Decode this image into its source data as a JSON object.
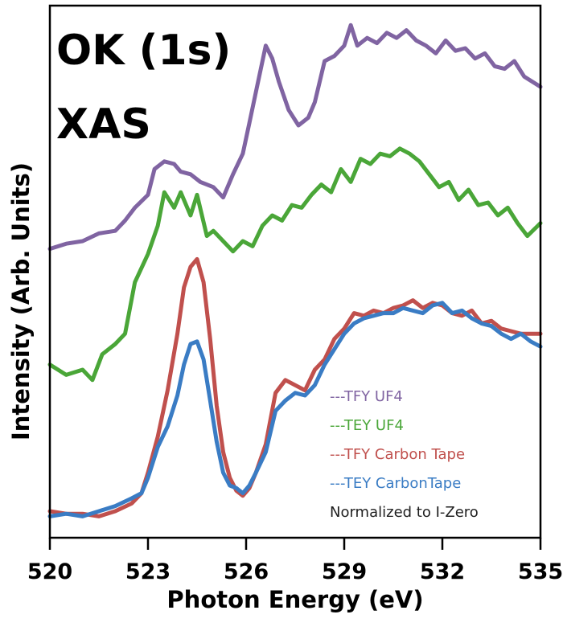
{
  "chart_data": {
    "type": "line",
    "title_lines": [
      "OK (1s)",
      "XAS"
    ],
    "xlabel": "Photon Energy (eV)",
    "ylabel": "Intensity (Arb. Units)",
    "xlim": [
      520,
      535
    ],
    "ylim": [
      0,
      1
    ],
    "grid": false,
    "legend_position": "bottom-right",
    "x_ticks": [
      {
        "value": 520,
        "label": "520"
      },
      {
        "value": 523,
        "label": "523"
      },
      {
        "value": 526,
        "label": "526"
      },
      {
        "value": 529,
        "label": "529"
      },
      {
        "value": 532,
        "label": "532"
      },
      {
        "value": 535,
        "label": "535"
      }
    ],
    "legend": [
      {
        "text": "---TFY  UF4",
        "color": "#8064a2"
      },
      {
        "text": "---TEY  UF4",
        "color": "#4aa638"
      },
      {
        "text": "---TFY  Carbon Tape",
        "color": "#c0504d"
      },
      {
        "text": "---TEY  CarbonTape",
        "color": "#3a7cc4"
      },
      {
        "text": "Normalized to I-Zero",
        "color": "#1f1f1f"
      }
    ],
    "series": [
      {
        "name": "TFY UF4",
        "color": "#8064a2",
        "x": [
          520.0,
          520.5,
          521.0,
          521.5,
          522.0,
          522.3,
          522.6,
          523.0,
          523.2,
          523.5,
          523.8,
          524.0,
          524.3,
          524.6,
          525.0,
          525.3,
          525.6,
          525.9,
          526.1,
          526.3,
          526.6,
          526.8,
          527.0,
          527.3,
          527.6,
          527.9,
          528.1,
          528.4,
          528.7,
          529.0,
          529.2,
          529.4,
          529.7,
          530.0,
          530.3,
          530.6,
          530.9,
          531.2,
          531.5,
          531.8,
          532.1,
          532.4,
          532.7,
          533.0,
          533.3,
          533.6,
          533.9,
          534.2,
          534.5,
          535.0
        ],
        "y": [
          0.535,
          0.545,
          0.55,
          0.565,
          0.57,
          0.59,
          0.615,
          0.64,
          0.69,
          0.705,
          0.7,
          0.685,
          0.68,
          0.665,
          0.655,
          0.635,
          0.68,
          0.72,
          0.78,
          0.84,
          0.93,
          0.905,
          0.86,
          0.805,
          0.775,
          0.79,
          0.82,
          0.9,
          0.91,
          0.93,
          0.97,
          0.93,
          0.945,
          0.935,
          0.955,
          0.945,
          0.96,
          0.94,
          0.93,
          0.915,
          0.94,
          0.92,
          0.925,
          0.905,
          0.915,
          0.89,
          0.885,
          0.9,
          0.87,
          0.85
        ]
      },
      {
        "name": "TEY UF4",
        "color": "#4aa638",
        "x": [
          520.0,
          520.5,
          521.0,
          521.3,
          521.6,
          522.0,
          522.3,
          522.6,
          523.0,
          523.3,
          523.5,
          523.8,
          524.0,
          524.3,
          524.5,
          524.8,
          525.0,
          525.3,
          525.6,
          525.9,
          526.2,
          526.5,
          526.8,
          527.1,
          527.4,
          527.7,
          528.0,
          528.3,
          528.6,
          528.9,
          529.2,
          529.5,
          529.8,
          530.1,
          530.4,
          530.7,
          531.0,
          531.3,
          531.6,
          531.9,
          532.2,
          532.5,
          532.8,
          533.1,
          533.4,
          533.7,
          534.0,
          534.3,
          534.6,
          535.0
        ],
        "y": [
          0.31,
          0.29,
          0.3,
          0.28,
          0.33,
          0.35,
          0.37,
          0.47,
          0.525,
          0.58,
          0.645,
          0.615,
          0.645,
          0.6,
          0.64,
          0.56,
          0.57,
          0.55,
          0.53,
          0.55,
          0.54,
          0.58,
          0.6,
          0.59,
          0.62,
          0.615,
          0.64,
          0.66,
          0.645,
          0.69,
          0.665,
          0.71,
          0.7,
          0.72,
          0.715,
          0.73,
          0.72,
          0.705,
          0.68,
          0.655,
          0.665,
          0.63,
          0.65,
          0.62,
          0.625,
          0.6,
          0.615,
          0.585,
          0.56,
          0.585
        ]
      },
      {
        "name": "TFY Carbon Tape",
        "color": "#c0504d",
        "x": [
          520.0,
          520.5,
          521.0,
          521.5,
          522.0,
          522.5,
          522.8,
          523.0,
          523.3,
          523.6,
          523.9,
          524.1,
          524.3,
          524.5,
          524.7,
          524.9,
          525.1,
          525.3,
          525.5,
          525.7,
          525.9,
          526.1,
          526.3,
          526.6,
          526.9,
          527.2,
          527.5,
          527.8,
          528.1,
          528.4,
          528.7,
          529.0,
          529.3,
          529.6,
          529.9,
          530.2,
          530.5,
          530.8,
          531.1,
          531.4,
          531.7,
          532.0,
          532.3,
          532.6,
          532.9,
          533.2,
          533.5,
          533.8,
          534.1,
          534.4,
          534.7,
          535.0
        ],
        "y": [
          0.025,
          0.02,
          0.02,
          0.015,
          0.025,
          0.04,
          0.06,
          0.1,
          0.17,
          0.26,
          0.37,
          0.46,
          0.5,
          0.515,
          0.47,
          0.36,
          0.23,
          0.14,
          0.09,
          0.065,
          0.055,
          0.07,
          0.1,
          0.155,
          0.255,
          0.28,
          0.27,
          0.26,
          0.3,
          0.32,
          0.36,
          0.38,
          0.41,
          0.405,
          0.415,
          0.41,
          0.42,
          0.425,
          0.435,
          0.42,
          0.43,
          0.425,
          0.41,
          0.405,
          0.415,
          0.39,
          0.395,
          0.38,
          0.375,
          0.37,
          0.37,
          0.37
        ]
      },
      {
        "name": "TEY CarbonTape",
        "color": "#3a7cc4",
        "x": [
          520.0,
          520.5,
          521.0,
          521.5,
          522.0,
          522.5,
          522.8,
          523.0,
          523.3,
          523.6,
          523.9,
          524.1,
          524.3,
          524.5,
          524.7,
          524.9,
          525.1,
          525.3,
          525.5,
          525.7,
          525.9,
          526.1,
          526.3,
          526.6,
          526.9,
          527.2,
          527.5,
          527.8,
          528.1,
          528.4,
          528.7,
          529.0,
          529.3,
          529.6,
          529.9,
          530.2,
          530.5,
          530.8,
          531.1,
          531.4,
          531.7,
          532.0,
          532.3,
          532.6,
          532.9,
          533.2,
          533.5,
          533.8,
          534.1,
          534.4,
          534.7,
          535.0
        ],
        "y": [
          0.015,
          0.02,
          0.015,
          0.025,
          0.035,
          0.05,
          0.06,
          0.09,
          0.15,
          0.19,
          0.25,
          0.31,
          0.35,
          0.355,
          0.32,
          0.24,
          0.16,
          0.1,
          0.075,
          0.07,
          0.06,
          0.075,
          0.1,
          0.14,
          0.22,
          0.24,
          0.255,
          0.25,
          0.27,
          0.31,
          0.34,
          0.37,
          0.39,
          0.4,
          0.405,
          0.41,
          0.41,
          0.42,
          0.415,
          0.41,
          0.425,
          0.43,
          0.41,
          0.415,
          0.4,
          0.39,
          0.385,
          0.37,
          0.36,
          0.37,
          0.355,
          0.345
        ]
      }
    ]
  }
}
